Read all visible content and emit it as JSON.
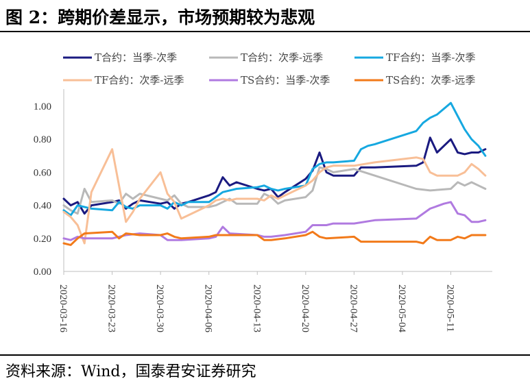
{
  "figure": {
    "title": "图 2：跨期价差显示，市场预期较为悲观",
    "source": "资料来源：Wind，国泰君安证券研究"
  },
  "chart_data": {
    "type": "line",
    "title": "图 2：跨期价差显示，市场预期较为悲观",
    "xlabel": "",
    "ylabel": "",
    "ylim": [
      0.0,
      1.0
    ],
    "yticks": [
      "0.00",
      "0.20",
      "0.40",
      "0.60",
      "0.80",
      "1.00"
    ],
    "xticks": [
      "2020-03-16",
      "2020-03-23",
      "2020-03-30",
      "2020-04-06",
      "2020-04-13",
      "2020-04-20",
      "2020-04-27",
      "2020-05-04",
      "2020-05-11"
    ],
    "xlim": [
      "2020-03-16",
      "2020-05-17"
    ],
    "grid": false,
    "legend_position": "top",
    "series": [
      {
        "name": "T合约：当季-次季",
        "color": "#1a1a80",
        "points": [
          [
            "2020-03-16",
            0.44
          ],
          [
            "2020-03-17",
            0.4
          ],
          [
            "2020-03-18",
            0.42
          ],
          [
            "2020-03-19",
            0.35
          ],
          [
            "2020-03-20",
            0.4
          ],
          [
            "2020-03-23",
            0.42
          ],
          [
            "2020-03-24",
            0.43
          ],
          [
            "2020-03-25",
            0.38
          ],
          [
            "2020-03-26",
            0.41
          ],
          [
            "2020-03-27",
            0.43
          ],
          [
            "2020-03-30",
            0.41
          ],
          [
            "2020-03-31",
            0.42
          ],
          [
            "2020-04-01",
            0.38
          ],
          [
            "2020-04-02",
            0.41
          ],
          [
            "2020-04-03",
            0.42
          ],
          [
            "2020-04-06",
            0.46
          ],
          [
            "2020-04-07",
            0.48
          ],
          [
            "2020-04-08",
            0.57
          ],
          [
            "2020-04-09",
            0.52
          ],
          [
            "2020-04-10",
            0.54
          ],
          [
            "2020-04-13",
            0.5
          ],
          [
            "2020-04-14",
            0.49
          ],
          [
            "2020-04-15",
            0.5
          ],
          [
            "2020-04-16",
            0.45
          ],
          [
            "2020-04-17",
            0.48
          ],
          [
            "2020-04-20",
            0.56
          ],
          [
            "2020-04-21",
            0.61
          ],
          [
            "2020-04-22",
            0.72
          ],
          [
            "2020-04-23",
            0.6
          ],
          [
            "2020-04-24",
            0.58
          ],
          [
            "2020-04-27",
            0.58
          ],
          [
            "2020-04-28",
            0.63
          ],
          [
            "2020-04-29",
            0.63
          ],
          [
            "2020-04-30",
            0.63
          ],
          [
            "2020-05-06",
            0.64
          ],
          [
            "2020-05-07",
            0.66
          ],
          [
            "2020-05-08",
            0.81
          ],
          [
            "2020-05-09",
            0.72
          ],
          [
            "2020-05-11",
            0.8
          ],
          [
            "2020-05-12",
            0.72
          ],
          [
            "2020-05-13",
            0.71
          ],
          [
            "2020-05-14",
            0.72
          ],
          [
            "2020-05-15",
            0.72
          ],
          [
            "2020-05-16",
            0.74
          ]
        ]
      },
      {
        "name": "T合约：次季-远季",
        "color": "#b8b8b8",
        "points": [
          [
            "2020-03-16",
            0.4
          ],
          [
            "2020-03-17",
            0.37
          ],
          [
            "2020-03-18",
            0.35
          ],
          [
            "2020-03-19",
            0.5
          ],
          [
            "2020-03-20",
            0.42
          ],
          [
            "2020-03-23",
            0.43
          ],
          [
            "2020-03-24",
            0.41
          ],
          [
            "2020-03-25",
            0.47
          ],
          [
            "2020-03-26",
            0.44
          ],
          [
            "2020-03-27",
            0.47
          ],
          [
            "2020-03-30",
            0.44
          ],
          [
            "2020-03-31",
            0.43
          ],
          [
            "2020-04-01",
            0.46
          ],
          [
            "2020-04-02",
            0.41
          ],
          [
            "2020-04-03",
            0.39
          ],
          [
            "2020-04-06",
            0.39
          ],
          [
            "2020-04-07",
            0.4
          ],
          [
            "2020-04-08",
            0.42
          ],
          [
            "2020-04-09",
            0.44
          ],
          [
            "2020-04-10",
            0.41
          ],
          [
            "2020-04-13",
            0.41
          ],
          [
            "2020-04-14",
            0.47
          ],
          [
            "2020-04-15",
            0.45
          ],
          [
            "2020-04-16",
            0.41
          ],
          [
            "2020-04-17",
            0.43
          ],
          [
            "2020-04-20",
            0.45
          ],
          [
            "2020-04-21",
            0.49
          ],
          [
            "2020-04-22",
            0.63
          ],
          [
            "2020-04-23",
            0.62
          ],
          [
            "2020-04-24",
            0.6
          ],
          [
            "2020-04-27",
            0.62
          ],
          [
            "2020-04-30",
            0.58
          ],
          [
            "2020-05-06",
            0.5
          ],
          [
            "2020-05-08",
            0.49
          ],
          [
            "2020-05-11",
            0.5
          ],
          [
            "2020-05-12",
            0.54
          ],
          [
            "2020-05-13",
            0.52
          ],
          [
            "2020-05-14",
            0.54
          ],
          [
            "2020-05-15",
            0.52
          ],
          [
            "2020-05-16",
            0.5
          ]
        ]
      },
      {
        "name": "TF合约：当季-次季",
        "color": "#16a8e0",
        "points": [
          [
            "2020-03-16",
            0.37
          ],
          [
            "2020-03-17",
            0.34
          ],
          [
            "2020-03-18",
            0.4
          ],
          [
            "2020-03-19",
            0.39
          ],
          [
            "2020-03-20",
            0.38
          ],
          [
            "2020-03-23",
            0.37
          ],
          [
            "2020-03-24",
            0.42
          ],
          [
            "2020-03-25",
            0.39
          ],
          [
            "2020-03-26",
            0.38
          ],
          [
            "2020-03-27",
            0.4
          ],
          [
            "2020-03-30",
            0.4
          ],
          [
            "2020-03-31",
            0.38
          ],
          [
            "2020-04-01",
            0.42
          ],
          [
            "2020-04-02",
            0.4
          ],
          [
            "2020-04-03",
            0.42
          ],
          [
            "2020-04-06",
            0.42
          ],
          [
            "2020-04-07",
            0.45
          ],
          [
            "2020-04-08",
            0.48
          ],
          [
            "2020-04-09",
            0.49
          ],
          [
            "2020-04-10",
            0.5
          ],
          [
            "2020-04-13",
            0.51
          ],
          [
            "2020-04-14",
            0.52
          ],
          [
            "2020-04-15",
            0.5
          ],
          [
            "2020-04-16",
            0.49
          ],
          [
            "2020-04-17",
            0.5
          ],
          [
            "2020-04-20",
            0.52
          ],
          [
            "2020-04-21",
            0.62
          ],
          [
            "2020-04-22",
            0.65
          ],
          [
            "2020-04-23",
            0.66
          ],
          [
            "2020-04-24",
            0.66
          ],
          [
            "2020-04-27",
            0.67
          ],
          [
            "2020-04-28",
            0.74
          ],
          [
            "2020-04-29",
            0.76
          ],
          [
            "2020-04-30",
            0.77
          ],
          [
            "2020-05-06",
            0.85
          ],
          [
            "2020-05-07",
            0.9
          ],
          [
            "2020-05-08",
            0.93
          ],
          [
            "2020-05-09",
            0.95
          ],
          [
            "2020-05-11",
            1.02
          ],
          [
            "2020-05-12",
            0.94
          ],
          [
            "2020-05-13",
            0.86
          ],
          [
            "2020-05-14",
            0.8
          ],
          [
            "2020-05-15",
            0.76
          ],
          [
            "2020-05-16",
            0.7
          ]
        ]
      },
      {
        "name": "TF合约：次季-远季",
        "color": "#f8bf97",
        "points": [
          [
            "2020-03-16",
            0.36
          ],
          [
            "2020-03-17",
            0.33
          ],
          [
            "2020-03-18",
            0.28
          ],
          [
            "2020-03-19",
            0.17
          ],
          [
            "2020-03-20",
            0.48
          ],
          [
            "2020-03-23",
            0.74
          ],
          [
            "2020-03-24",
            0.52
          ],
          [
            "2020-03-25",
            0.3
          ],
          [
            "2020-03-26",
            0.36
          ],
          [
            "2020-03-27",
            0.44
          ],
          [
            "2020-03-30",
            0.6
          ],
          [
            "2020-03-31",
            0.47
          ],
          [
            "2020-04-01",
            0.42
          ],
          [
            "2020-04-02",
            0.32
          ],
          [
            "2020-04-03",
            0.34
          ],
          [
            "2020-04-06",
            0.4
          ],
          [
            "2020-04-07",
            0.43
          ],
          [
            "2020-04-08",
            0.44
          ],
          [
            "2020-04-09",
            0.43
          ],
          [
            "2020-04-10",
            0.44
          ],
          [
            "2020-04-13",
            0.44
          ],
          [
            "2020-04-14",
            0.43
          ],
          [
            "2020-04-15",
            0.46
          ],
          [
            "2020-04-16",
            0.44
          ],
          [
            "2020-04-17",
            0.46
          ],
          [
            "2020-04-20",
            0.52
          ],
          [
            "2020-04-21",
            0.55
          ],
          [
            "2020-04-22",
            0.6
          ],
          [
            "2020-04-23",
            0.63
          ],
          [
            "2020-04-24",
            0.64
          ],
          [
            "2020-04-27",
            0.64
          ],
          [
            "2020-04-30",
            0.66
          ],
          [
            "2020-05-06",
            0.69
          ],
          [
            "2020-05-07",
            0.68
          ],
          [
            "2020-05-08",
            0.6
          ],
          [
            "2020-05-09",
            0.58
          ],
          [
            "2020-05-11",
            0.58
          ],
          [
            "2020-05-12",
            0.58
          ],
          [
            "2020-05-13",
            0.6
          ],
          [
            "2020-05-14",
            0.65
          ],
          [
            "2020-05-15",
            0.62
          ],
          [
            "2020-05-16",
            0.58
          ]
        ]
      },
      {
        "name": "TS合约：当季-次季",
        "color": "#b07ae0",
        "points": [
          [
            "2020-03-16",
            0.2
          ],
          [
            "2020-03-17",
            0.19
          ],
          [
            "2020-03-18",
            0.21
          ],
          [
            "2020-03-19",
            0.2
          ],
          [
            "2020-03-23",
            0.2
          ],
          [
            "2020-03-24",
            0.21
          ],
          [
            "2020-03-25",
            0.22
          ],
          [
            "2020-03-27",
            0.23
          ],
          [
            "2020-03-30",
            0.22
          ],
          [
            "2020-03-31",
            0.19
          ],
          [
            "2020-04-02",
            0.19
          ],
          [
            "2020-04-06",
            0.2
          ],
          [
            "2020-04-07",
            0.21
          ],
          [
            "2020-04-08",
            0.27
          ],
          [
            "2020-04-09",
            0.23
          ],
          [
            "2020-04-13",
            0.22
          ],
          [
            "2020-04-14",
            0.21
          ],
          [
            "2020-04-15",
            0.21
          ],
          [
            "2020-04-17",
            0.22
          ],
          [
            "2020-04-20",
            0.24
          ],
          [
            "2020-04-21",
            0.28
          ],
          [
            "2020-04-23",
            0.28
          ],
          [
            "2020-04-24",
            0.29
          ],
          [
            "2020-04-27",
            0.29
          ],
          [
            "2020-04-30",
            0.31
          ],
          [
            "2020-05-06",
            0.32
          ],
          [
            "2020-05-07",
            0.35
          ],
          [
            "2020-05-08",
            0.38
          ],
          [
            "2020-05-10",
            0.41
          ],
          [
            "2020-05-11",
            0.42
          ],
          [
            "2020-05-12",
            0.35
          ],
          [
            "2020-05-13",
            0.34
          ],
          [
            "2020-05-14",
            0.3
          ],
          [
            "2020-05-15",
            0.3
          ],
          [
            "2020-05-16",
            0.31
          ]
        ]
      },
      {
        "name": "TS合约：次季-远季",
        "color": "#f27a1a",
        "points": [
          [
            "2020-03-16",
            0.17
          ],
          [
            "2020-03-17",
            0.16
          ],
          [
            "2020-03-18",
            0.2
          ],
          [
            "2020-03-19",
            0.23
          ],
          [
            "2020-03-23",
            0.24
          ],
          [
            "2020-03-24",
            0.2
          ],
          [
            "2020-03-25",
            0.23
          ],
          [
            "2020-03-27",
            0.22
          ],
          [
            "2020-03-30",
            0.22
          ],
          [
            "2020-03-31",
            0.23
          ],
          [
            "2020-04-01",
            0.21
          ],
          [
            "2020-04-02",
            0.2
          ],
          [
            "2020-04-06",
            0.21
          ],
          [
            "2020-04-07",
            0.22
          ],
          [
            "2020-04-08",
            0.22
          ],
          [
            "2020-04-13",
            0.22
          ],
          [
            "2020-04-14",
            0.19
          ],
          [
            "2020-04-15",
            0.19
          ],
          [
            "2020-04-17",
            0.2
          ],
          [
            "2020-04-20",
            0.22
          ],
          [
            "2020-04-21",
            0.24
          ],
          [
            "2020-04-22",
            0.21
          ],
          [
            "2020-04-23",
            0.2
          ],
          [
            "2020-04-27",
            0.21
          ],
          [
            "2020-04-28",
            0.18
          ],
          [
            "2020-04-30",
            0.18
          ],
          [
            "2020-05-06",
            0.18
          ],
          [
            "2020-05-07",
            0.17
          ],
          [
            "2020-05-08",
            0.21
          ],
          [
            "2020-05-09",
            0.19
          ],
          [
            "2020-05-11",
            0.19
          ],
          [
            "2020-05-12",
            0.21
          ],
          [
            "2020-05-13",
            0.2
          ],
          [
            "2020-05-14",
            0.22
          ],
          [
            "2020-05-15",
            0.22
          ],
          [
            "2020-05-16",
            0.22
          ]
        ]
      }
    ]
  }
}
